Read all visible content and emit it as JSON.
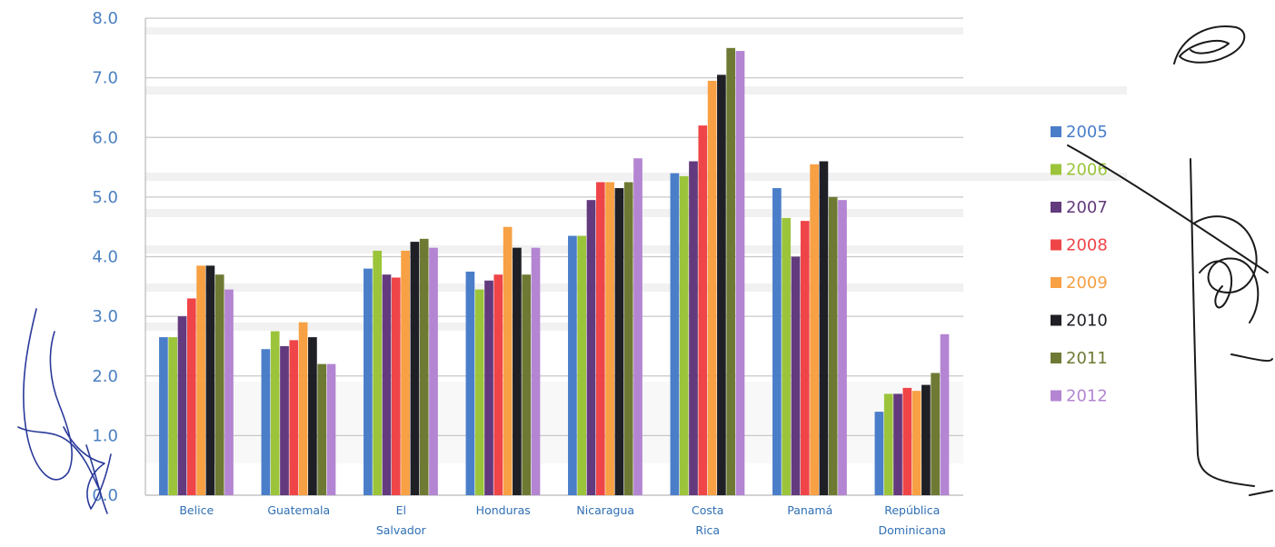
{
  "chart_data": {
    "type": "bar",
    "title": "",
    "xlabel": "",
    "ylabel": "",
    "ylim": [
      0,
      8
    ],
    "yticks": [
      "0.0",
      "1.0",
      "2.0",
      "3.0",
      "4.0",
      "5.0",
      "6.0",
      "7.0",
      "8.0"
    ],
    "grid": true,
    "legend": "right",
    "categories": [
      "Belice",
      "Guatemala",
      "El Salvador",
      "Honduras",
      "Nicaragua",
      "Costa Rica",
      "Panamá",
      "República Dominicana"
    ],
    "series": [
      {
        "name": "2005",
        "color": "#4a7ec9",
        "values": [
          2.65,
          2.45,
          3.8,
          3.75,
          4.35,
          5.4,
          5.15,
          1.4
        ]
      },
      {
        "name": "2006",
        "color": "#9bc43b",
        "values": [
          2.65,
          2.75,
          4.1,
          3.45,
          4.35,
          5.35,
          4.65,
          1.7
        ]
      },
      {
        "name": "2007",
        "color": "#633a7d",
        "values": [
          3.0,
          2.5,
          3.7,
          3.6,
          4.95,
          5.6,
          4.0,
          1.7
        ]
      },
      {
        "name": "2008",
        "color": "#ef4548",
        "values": [
          3.3,
          2.6,
          3.65,
          3.7,
          5.25,
          6.2,
          4.6,
          1.8
        ]
      },
      {
        "name": "2009",
        "color": "#f7a044",
        "values": [
          3.85,
          2.9,
          4.1,
          4.5,
          5.25,
          6.95,
          5.55,
          1.75
        ]
      },
      {
        "name": "2010",
        "color": "#1f1f26",
        "values": [
          3.85,
          2.65,
          4.25,
          4.15,
          5.15,
          7.05,
          5.6,
          1.85
        ]
      },
      {
        "name": "2011",
        "color": "#6e7a34",
        "values": [
          3.7,
          2.2,
          4.3,
          3.7,
          5.25,
          7.5,
          5.0,
          2.05
        ]
      },
      {
        "name": "2012",
        "color": "#b385d2",
        "values": [
          3.45,
          2.2,
          4.15,
          4.15,
          5.65,
          7.45,
          4.95,
          2.7
        ]
      }
    ]
  }
}
